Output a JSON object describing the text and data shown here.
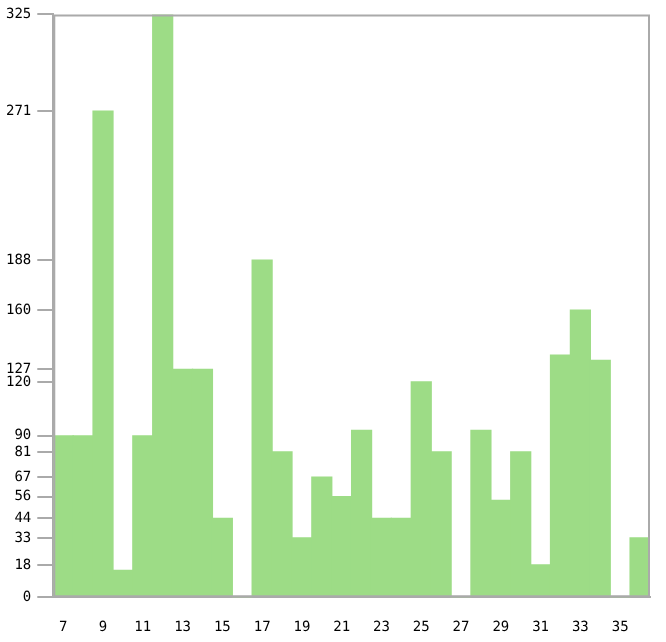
{
  "chart_data": {
    "type": "bar",
    "categories": [
      "7",
      null,
      "9",
      null,
      "11",
      null,
      "13",
      null,
      "15",
      null,
      "17",
      null,
      "19",
      null,
      "21",
      null,
      "23",
      null,
      "25",
      null,
      "27",
      null,
      "29",
      null,
      "31",
      null,
      "33",
      null,
      "35",
      null
    ],
    "values": [
      90,
      90,
      271,
      15,
      90,
      325,
      127,
      127,
      44,
      0,
      188,
      81,
      33,
      67,
      56,
      93,
      44,
      44,
      120,
      81,
      0,
      93,
      54,
      81,
      18,
      135,
      160,
      132,
      0,
      33
    ],
    "color": "#9ddc86",
    "ylim": [
      0,
      325
    ],
    "yticks": [
      0,
      18,
      33,
      44,
      56,
      67,
      81,
      90,
      120,
      127,
      160,
      188,
      271,
      325
    ],
    "grid": false
  }
}
